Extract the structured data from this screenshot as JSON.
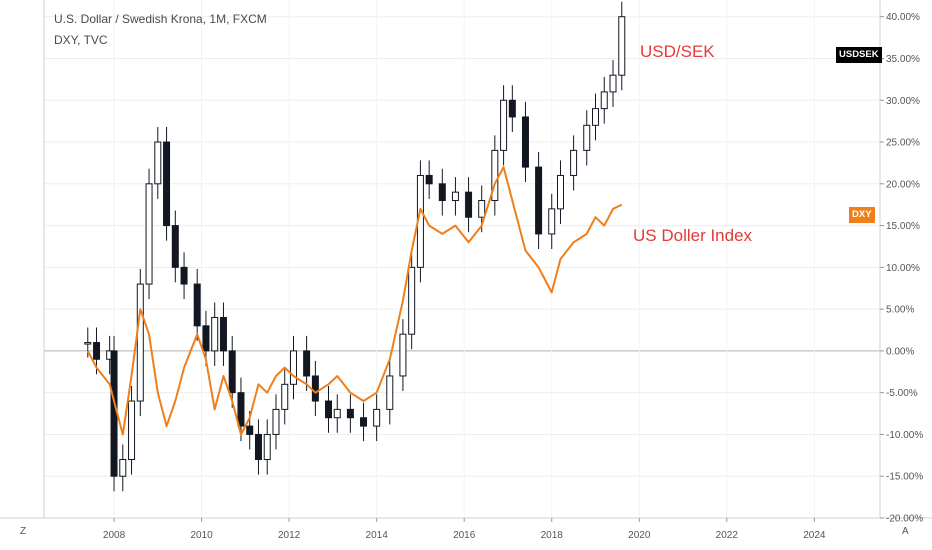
{
  "header": {
    "title": "U.S. Dollar / Swedish Krona, 1M, FXCM",
    "subtitle": "DXY, TVC"
  },
  "corner": {
    "left": "Z",
    "right": "A"
  },
  "annotations": {
    "usdsek": "USD/SEK",
    "dxy": "US Doller Index"
  },
  "badges": {
    "usdsek": "USDSEK",
    "dxy": "DXY"
  },
  "chart_data": {
    "type": "line",
    "x_ticks": [
      "2008",
      "2010",
      "2012",
      "2014",
      "2016",
      "2018",
      "2020",
      "2022",
      "2024"
    ],
    "y_ticks": [
      "-20.00%",
      "-15.00%",
      "-10.00%",
      "-5.00%",
      "0.00%",
      "5.00%",
      "10.00%",
      "15.00%",
      "20.00%",
      "25.00%",
      "30.00%",
      "35.00%",
      "40.00%"
    ],
    "ylim": [
      -20,
      42
    ],
    "xlim": [
      2006.4,
      2025.5
    ],
    "colors": {
      "usdsek": "#131722",
      "dxy": "#ef7f1a",
      "zero_line": "#b0b0b0",
      "annotation": "#e53935"
    },
    "series": [
      {
        "name": "USDSEK",
        "style": "candles",
        "x": [
          2007.4,
          2007.6,
          2007.9,
          2008.0,
          2008.2,
          2008.4,
          2008.6,
          2008.8,
          2009.0,
          2009.2,
          2009.4,
          2009.6,
          2009.9,
          2010.1,
          2010.3,
          2010.5,
          2010.7,
          2010.9,
          2011.1,
          2011.3,
          2011.5,
          2011.7,
          2011.9,
          2012.1,
          2012.4,
          2012.6,
          2012.9,
          2013.1,
          2013.4,
          2013.7,
          2014.0,
          2014.3,
          2014.6,
          2014.8,
          2015.0,
          2015.2,
          2015.5,
          2015.8,
          2016.1,
          2016.4,
          2016.7,
          2016.9,
          2017.1,
          2017.4,
          2017.7,
          2018.0,
          2018.2,
          2018.5,
          2018.8,
          2019.0,
          2019.2,
          2019.4,
          2019.6
        ],
        "values": [
          1,
          -1,
          0,
          -15,
          -13,
          -6,
          8,
          20,
          25,
          15,
          10,
          8,
          3,
          0,
          4,
          0,
          -5,
          -9,
          -10,
          -13,
          -10,
          -7,
          -4,
          0,
          -3,
          -6,
          -8,
          -7,
          -8,
          -9,
          -7,
          -3,
          2,
          10,
          21,
          20,
          18,
          19,
          16,
          18,
          24,
          30,
          28,
          22,
          14,
          17,
          21,
          24,
          27,
          29,
          31,
          33,
          40
        ]
      },
      {
        "name": "DXY",
        "style": "line",
        "x": [
          2007.4,
          2007.6,
          2007.9,
          2008.0,
          2008.2,
          2008.4,
          2008.6,
          2008.8,
          2009.0,
          2009.2,
          2009.4,
          2009.6,
          2009.9,
          2010.1,
          2010.3,
          2010.5,
          2010.7,
          2010.9,
          2011.1,
          2011.3,
          2011.5,
          2011.7,
          2011.9,
          2012.1,
          2012.4,
          2012.6,
          2012.9,
          2013.1,
          2013.4,
          2013.7,
          2014.0,
          2014.3,
          2014.6,
          2014.8,
          2015.0,
          2015.2,
          2015.5,
          2015.8,
          2016.1,
          2016.4,
          2016.7,
          2016.9,
          2017.1,
          2017.4,
          2017.7,
          2018.0,
          2018.2,
          2018.5,
          2018.8,
          2019.0,
          2019.2,
          2019.4,
          2019.6
        ],
        "values": [
          0,
          -2,
          -4,
          -6,
          -10,
          -3,
          5,
          2,
          -5,
          -9,
          -6,
          -2,
          2,
          -1,
          -7,
          -3,
          -6,
          -10,
          -8,
          -4,
          -5,
          -3,
          -2,
          -3,
          -4,
          -5,
          -4,
          -3,
          -5,
          -6,
          -5,
          -1,
          6,
          12,
          17,
          15,
          14,
          15,
          13,
          15,
          20,
          22,
          18,
          12,
          10,
          7,
          11,
          13,
          14,
          16,
          15,
          17,
          17.5
        ]
      }
    ]
  }
}
